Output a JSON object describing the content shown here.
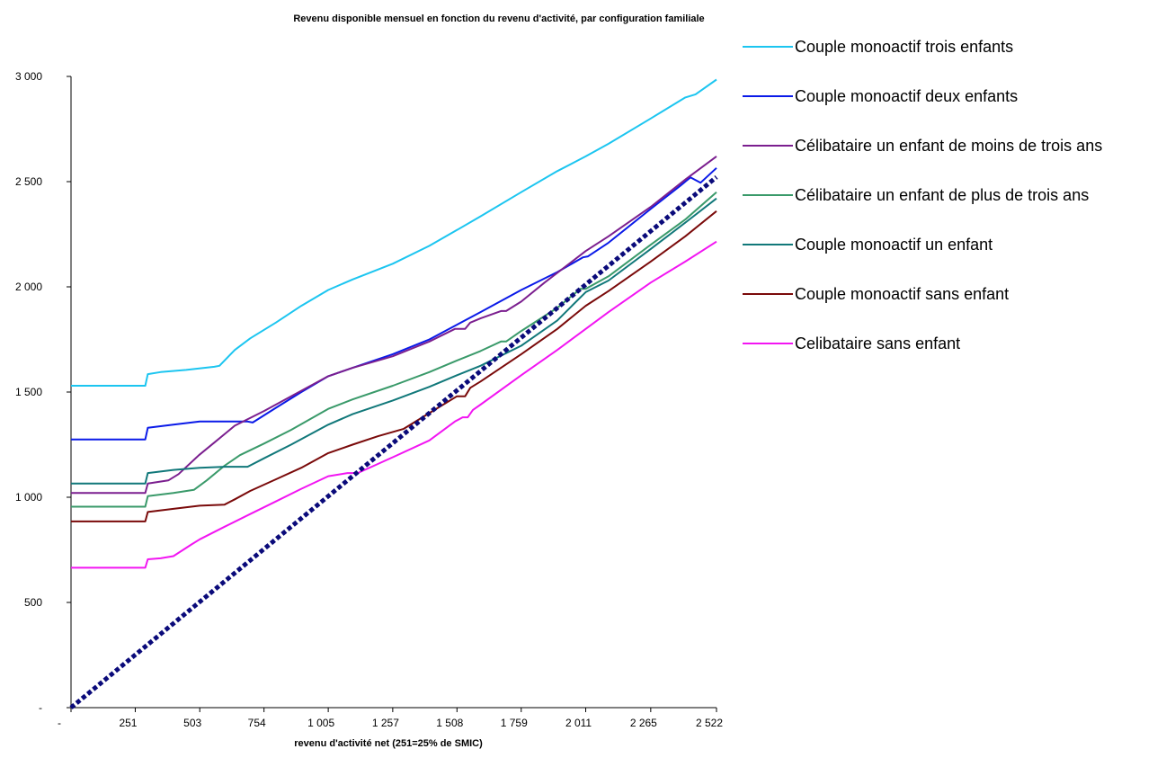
{
  "chart_data": {
    "type": "line",
    "title": "Revenu disponible mensuel en fonction du revenu d'activité, par configuration familiale",
    "xlabel": "revenu d'activité net (251=25% de SMIC)",
    "ylabel": "",
    "xlim": [
      0,
      2522
    ],
    "ylim": [
      0,
      3000
    ],
    "x_ticks": [
      0,
      251,
      503,
      754,
      1005,
      1257,
      1508,
      1759,
      2011,
      2265,
      2522
    ],
    "x_tick_labels": [
      "-",
      "251",
      "503",
      "754",
      "1 005",
      "1 257",
      "1 508",
      "1 759",
      "2 011",
      "2 265",
      "2 522"
    ],
    "y_ticks": [
      0,
      500,
      1000,
      1500,
      2000,
      2500,
      3000
    ],
    "y_tick_labels": [
      "-",
      "500",
      "1 000",
      "1 500",
      "2 000",
      "2 500",
      "3 000"
    ],
    "grid": false,
    "legend_position": "right",
    "series": [
      {
        "name": "Couple monoactif trois enfants",
        "color": "#1cc5f0",
        "dash": false,
        "points": [
          [
            0,
            1530
          ],
          [
            290,
            1530
          ],
          [
            300,
            1585
          ],
          [
            350,
            1595
          ],
          [
            450,
            1605
          ],
          [
            560,
            1620
          ],
          [
            580,
            1625
          ],
          [
            640,
            1700
          ],
          [
            700,
            1755
          ],
          [
            800,
            1830
          ],
          [
            900,
            1910
          ],
          [
            1005,
            1985
          ],
          [
            1100,
            2035
          ],
          [
            1257,
            2110
          ],
          [
            1400,
            2195
          ],
          [
            1508,
            2270
          ],
          [
            1600,
            2335
          ],
          [
            1759,
            2450
          ],
          [
            1900,
            2550
          ],
          [
            2011,
            2620
          ],
          [
            2100,
            2680
          ],
          [
            2265,
            2800
          ],
          [
            2400,
            2900
          ],
          [
            2440,
            2915
          ],
          [
            2522,
            2985
          ]
        ]
      },
      {
        "name": "Couple monoactif deux enfants",
        "color": "#0a1ae8",
        "dash": false,
        "points": [
          [
            0,
            1275
          ],
          [
            290,
            1275
          ],
          [
            300,
            1330
          ],
          [
            400,
            1345
          ],
          [
            503,
            1360
          ],
          [
            600,
            1360
          ],
          [
            690,
            1360
          ],
          [
            710,
            1355
          ],
          [
            800,
            1425
          ],
          [
            900,
            1500
          ],
          [
            1005,
            1575
          ],
          [
            1100,
            1615
          ],
          [
            1257,
            1680
          ],
          [
            1400,
            1750
          ],
          [
            1508,
            1820
          ],
          [
            1600,
            1880
          ],
          [
            1759,
            1985
          ],
          [
            1900,
            2070
          ],
          [
            2000,
            2140
          ],
          [
            2020,
            2145
          ],
          [
            2100,
            2210
          ],
          [
            2265,
            2370
          ],
          [
            2380,
            2480
          ],
          [
            2420,
            2520
          ],
          [
            2460,
            2495
          ],
          [
            2522,
            2565
          ]
        ]
      },
      {
        "name": "Célibataire un enfant de moins de trois ans",
        "color": "#7b1f8f",
        "dash": false,
        "points": [
          [
            0,
            1020
          ],
          [
            290,
            1020
          ],
          [
            300,
            1065
          ],
          [
            380,
            1080
          ],
          [
            420,
            1110
          ],
          [
            500,
            1200
          ],
          [
            560,
            1260
          ],
          [
            640,
            1340
          ],
          [
            754,
            1410
          ],
          [
            860,
            1480
          ],
          [
            1005,
            1575
          ],
          [
            1100,
            1615
          ],
          [
            1257,
            1670
          ],
          [
            1400,
            1740
          ],
          [
            1500,
            1800
          ],
          [
            1540,
            1800
          ],
          [
            1560,
            1830
          ],
          [
            1600,
            1850
          ],
          [
            1680,
            1885
          ],
          [
            1700,
            1885
          ],
          [
            1759,
            1930
          ],
          [
            1850,
            2020
          ],
          [
            2011,
            2170
          ],
          [
            2100,
            2240
          ],
          [
            2265,
            2380
          ],
          [
            2400,
            2510
          ],
          [
            2522,
            2620
          ]
        ]
      },
      {
        "name": "Célibataire un enfant de plus de trois ans",
        "color": "#3a9a6a",
        "dash": false,
        "points": [
          [
            0,
            955
          ],
          [
            290,
            955
          ],
          [
            300,
            1005
          ],
          [
            400,
            1020
          ],
          [
            480,
            1035
          ],
          [
            530,
            1080
          ],
          [
            600,
            1150
          ],
          [
            660,
            1200
          ],
          [
            754,
            1255
          ],
          [
            860,
            1320
          ],
          [
            1005,
            1420
          ],
          [
            1100,
            1465
          ],
          [
            1257,
            1530
          ],
          [
            1400,
            1595
          ],
          [
            1508,
            1650
          ],
          [
            1600,
            1695
          ],
          [
            1680,
            1740
          ],
          [
            1700,
            1740
          ],
          [
            1759,
            1790
          ],
          [
            1900,
            1900
          ],
          [
            1990,
            1990
          ],
          [
            2011,
            1990
          ],
          [
            2100,
            2050
          ],
          [
            2265,
            2200
          ],
          [
            2400,
            2320
          ],
          [
            2522,
            2450
          ]
        ]
      },
      {
        "name": "Couple monoactif un enfant",
        "color": "#11787a",
        "dash": false,
        "points": [
          [
            0,
            1065
          ],
          [
            290,
            1065
          ],
          [
            300,
            1115
          ],
          [
            400,
            1130
          ],
          [
            503,
            1140
          ],
          [
            600,
            1145
          ],
          [
            690,
            1145
          ],
          [
            754,
            1185
          ],
          [
            860,
            1250
          ],
          [
            1005,
            1345
          ],
          [
            1100,
            1395
          ],
          [
            1257,
            1460
          ],
          [
            1400,
            1525
          ],
          [
            1508,
            1580
          ],
          [
            1600,
            1625
          ],
          [
            1759,
            1720
          ],
          [
            1900,
            1840
          ],
          [
            2011,
            1975
          ],
          [
            2100,
            2030
          ],
          [
            2265,
            2180
          ],
          [
            2400,
            2305
          ],
          [
            2522,
            2420
          ]
        ]
      },
      {
        "name": "Couple monoactif sans enfant",
        "color": "#7a0a0a",
        "dash": false,
        "points": [
          [
            0,
            885
          ],
          [
            290,
            885
          ],
          [
            300,
            930
          ],
          [
            400,
            945
          ],
          [
            503,
            960
          ],
          [
            600,
            965
          ],
          [
            640,
            990
          ],
          [
            700,
            1030
          ],
          [
            800,
            1085
          ],
          [
            900,
            1140
          ],
          [
            1005,
            1210
          ],
          [
            1100,
            1250
          ],
          [
            1200,
            1290
          ],
          [
            1300,
            1325
          ],
          [
            1400,
            1400
          ],
          [
            1508,
            1480
          ],
          [
            1540,
            1480
          ],
          [
            1560,
            1520
          ],
          [
            1600,
            1550
          ],
          [
            1759,
            1680
          ],
          [
            1900,
            1800
          ],
          [
            2011,
            1910
          ],
          [
            2100,
            1980
          ],
          [
            2265,
            2120
          ],
          [
            2400,
            2240
          ],
          [
            2522,
            2360
          ]
        ]
      },
      {
        "name": "Celibataire sans enfant",
        "color": "#f215f2",
        "dash": false,
        "points": [
          [
            0,
            665
          ],
          [
            290,
            665
          ],
          [
            300,
            705
          ],
          [
            350,
            710
          ],
          [
            400,
            720
          ],
          [
            470,
            775
          ],
          [
            503,
            800
          ],
          [
            600,
            860
          ],
          [
            700,
            920
          ],
          [
            800,
            980
          ],
          [
            900,
            1040
          ],
          [
            1005,
            1100
          ],
          [
            1080,
            1115
          ],
          [
            1120,
            1115
          ],
          [
            1257,
            1190
          ],
          [
            1400,
            1270
          ],
          [
            1500,
            1360
          ],
          [
            1530,
            1380
          ],
          [
            1550,
            1380
          ],
          [
            1570,
            1415
          ],
          [
            1600,
            1440
          ],
          [
            1759,
            1580
          ],
          [
            1900,
            1700
          ],
          [
            2011,
            1800
          ],
          [
            2100,
            1880
          ],
          [
            2265,
            2020
          ],
          [
            2400,
            2120
          ],
          [
            2522,
            2215
          ]
        ]
      },
      {
        "name": "",
        "color": "#0a0a7a",
        "dash": true,
        "points": [
          [
            0,
            0
          ],
          [
            2522,
            2522
          ]
        ]
      }
    ]
  }
}
